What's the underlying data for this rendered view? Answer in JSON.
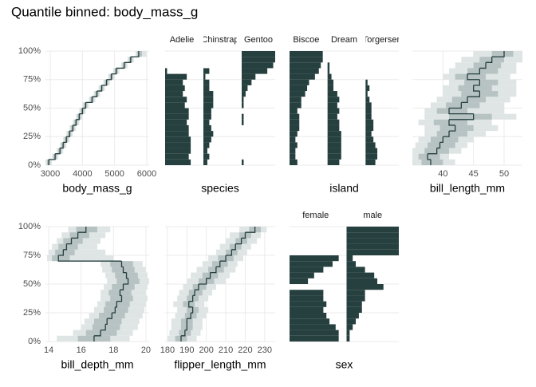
{
  "chart_data": {
    "title": "Quantile binned: body_mass_g",
    "ylim": [
      0,
      100
    ],
    "yticks": [
      {
        "value": 0,
        "label": "0%"
      },
      {
        "value": 25,
        "label": "25%"
      },
      {
        "value": 50,
        "label": "50%"
      },
      {
        "value": 75,
        "label": "75%"
      },
      {
        "value": 100,
        "label": "100%"
      }
    ],
    "bins": [
      0,
      5,
      10,
      15,
      20,
      25,
      30,
      35,
      40,
      45,
      50,
      55,
      60,
      65,
      70,
      75,
      80,
      85,
      90,
      95,
      100
    ],
    "color": "#263f3f",
    "grid": true,
    "panels": [
      {
        "type": "step",
        "x_label": "body_mass_g",
        "xlim": [
          2850,
          6075
        ],
        "xticks": [
          3000,
          4000,
          5000,
          6000
        ],
        "values": [
          2950,
          3150,
          3300,
          3400,
          3500,
          3600,
          3700,
          3800,
          3900,
          4000,
          4100,
          4300,
          4450,
          4600,
          4750,
          4900,
          5050,
          5300,
          5500,
          5750
        ],
        "band_low": [
          2850,
          3050,
          3200,
          3300,
          3400,
          3500,
          3600,
          3700,
          3800,
          3900,
          4000,
          4200,
          4350,
          4500,
          4650,
          4800,
          4950,
          5200,
          5400,
          5650
        ],
        "band_high": [
          3050,
          3250,
          3400,
          3500,
          3600,
          3700,
          3800,
          3900,
          4000,
          4100,
          4200,
          4400,
          4550,
          4700,
          4850,
          5000,
          5150,
          5400,
          5600,
          6000
        ],
        "inner_low": [
          2900,
          3100,
          3250,
          3350,
          3450,
          3550,
          3650,
          3750,
          3850,
          3950,
          4050,
          4250,
          4400,
          4550,
          4700,
          4850,
          5000,
          5250,
          5450,
          5700
        ],
        "inner_high": [
          3000,
          3200,
          3350,
          3450,
          3550,
          3650,
          3750,
          3850,
          3950,
          4050,
          4150,
          4350,
          4500,
          4650,
          4800,
          4950,
          5100,
          5350,
          5550,
          5850
        ]
      },
      {
        "type": "bar",
        "x_label": "species",
        "xlim": [
          0,
          17
        ],
        "facets": [
          {
            "name": "Adelie",
            "values": [
              13,
              12,
              13,
              13,
              13,
              12,
              12,
              11,
              12,
              12,
              10,
              11,
              9,
              10,
              9,
              11,
              1,
              0,
              0,
              0
            ]
          },
          {
            "name": "Chinstrap",
            "values": [
              2,
              3,
              2,
              3,
              4,
              5,
              4,
              3,
              4,
              4,
              5,
              5,
              5,
              3,
              3,
              1,
              3,
              0,
              0,
              0
            ]
          },
          {
            "name": "Gentoo",
            "values": [
              1,
              0,
              0,
              0,
              0,
              0,
              0,
              1,
              1,
              0,
              1,
              1,
              2,
              3,
              5,
              7,
              13,
              16,
              17,
              17
            ]
          }
        ]
      },
      {
        "type": "bar",
        "x_label": "island",
        "xlim": [
          0,
          17
        ],
        "facets": [
          {
            "name": "Biscoe",
            "values": [
              4,
              3,
              3,
              4,
              3,
              4,
              5,
              5,
              5,
              4,
              6,
              6,
              8,
              9,
              10,
              13,
              15,
              16,
              17,
              17
            ]
          },
          {
            "name": "Dream",
            "values": [
              6,
              7,
              7,
              7,
              7,
              7,
              6,
              6,
              5,
              6,
              5,
              6,
              5,
              3,
              3,
              2,
              1,
              1,
              0,
              0
            ]
          },
          {
            "name": "Torgersen",
            "values": [
              5,
              6,
              6,
              5,
              4,
              3,
              4,
              4,
              3,
              3,
              3,
              2,
              1,
              2,
              1,
              0,
              0,
              0,
              0,
              0
            ]
          }
        ]
      },
      {
        "type": "step",
        "x_label": "bill_length_mm",
        "xlim": [
          35,
          53
        ],
        "xticks": [
          40,
          45,
          50
        ],
        "values": [
          38,
          37.5,
          39,
          39.5,
          40,
          41,
          42,
          41,
          45,
          41,
          43,
          44,
          46,
          45,
          46,
          44,
          46,
          47,
          48,
          50
        ],
        "band_low": [
          35,
          35,
          35,
          35.5,
          36,
          37,
          37,
          36,
          37,
          37,
          38,
          39,
          40,
          40,
          41,
          40,
          41,
          42,
          43,
          45
        ],
        "band_high": [
          42,
          41,
          43,
          44,
          45,
          47,
          49,
          48,
          52,
          50,
          50,
          51,
          52,
          52,
          52,
          51,
          52,
          52,
          53,
          53
        ],
        "inner_low": [
          36.5,
          36,
          37,
          37.5,
          38,
          39,
          39.5,
          38.5,
          41,
          39,
          40.5,
          41.5,
          43,
          42.5,
          43.5,
          42,
          44,
          45,
          46,
          48
        ],
        "inner_high": [
          40,
          39.5,
          41,
          42,
          42.5,
          44,
          45,
          44,
          48,
          44,
          46,
          47,
          49,
          48,
          49,
          47,
          49,
          49.5,
          50,
          51.5
        ]
      },
      {
        "type": "step",
        "x_label": "bill_depth_mm",
        "xlim": [
          13.8,
          20.2
        ],
        "xticks": [
          14,
          16,
          18,
          20
        ],
        "values": [
          16.8,
          17.2,
          17.5,
          17.6,
          17.9,
          18.1,
          18.2,
          18.5,
          18.4,
          18.6,
          18.9,
          18.8,
          18.6,
          18.5,
          14.6,
          14.9,
          15.1,
          15.4,
          15.8,
          16.3
        ],
        "band_low": [
          14.5,
          15.5,
          16,
          16.2,
          16.5,
          16.8,
          17,
          17.2,
          17.2,
          17.4,
          17.6,
          17.5,
          17.3,
          17.2,
          13.9,
          14,
          14.2,
          14.5,
          14.8,
          15.2
        ],
        "band_high": [
          19,
          19.2,
          19.5,
          19.6,
          19.8,
          19.9,
          20,
          20.1,
          20,
          20.1,
          20.2,
          20.1,
          20,
          19.8,
          18,
          17.5,
          17,
          17.2,
          17.5,
          17.8
        ],
        "inner_low": [
          15.8,
          16.3,
          16.7,
          16.8,
          17.1,
          17.4,
          17.5,
          17.8,
          17.7,
          17.9,
          18.2,
          18.1,
          17.9,
          17.8,
          14.2,
          14.4,
          14.6,
          14.9,
          15.3,
          15.7
        ],
        "inner_high": [
          17.8,
          18.2,
          18.4,
          18.5,
          18.7,
          18.9,
          19,
          19.2,
          19.1,
          19.3,
          19.6,
          19.5,
          19.3,
          19.2,
          15.3,
          15.6,
          15.8,
          16.1,
          16.5,
          17
        ]
      },
      {
        "type": "step",
        "x_label": "flipper_length_mm",
        "xlim": [
          178.8,
          235.4
        ],
        "xticks": [
          180,
          190,
          200,
          210,
          220,
          230
        ],
        "values": [
          187,
          189,
          190,
          190,
          192,
          193,
          191,
          193,
          194,
          196,
          200,
          202,
          205,
          207,
          210,
          213,
          215,
          218,
          220,
          225
        ],
        "band_low": [
          180,
          181,
          182,
          182,
          184,
          185,
          183,
          185,
          186,
          188,
          190,
          192,
          195,
          198,
          201,
          205,
          207,
          210,
          212,
          217
        ],
        "band_high": [
          195,
          197,
          198,
          198,
          200,
          201,
          199,
          201,
          203,
          205,
          210,
          212,
          215,
          216,
          219,
          221,
          223,
          226,
          228,
          231
        ],
        "inner_low": [
          184,
          186,
          187,
          187,
          189,
          190,
          188,
          190,
          191,
          193,
          196,
          198,
          201,
          203,
          206,
          210,
          212,
          215,
          217,
          222
        ],
        "inner_high": [
          190,
          192,
          193,
          193,
          195,
          196,
          194,
          196,
          198,
          200,
          204,
          206,
          209,
          211,
          214,
          216,
          218,
          221,
          223,
          228
        ]
      },
      {
        "type": "bar",
        "x_label": "sex",
        "xlim": [
          0,
          17
        ],
        "facets": [
          {
            "name": "female",
            "values": [
              16,
              16,
              15,
              13,
              12,
              11,
              12,
              11,
              11,
              0,
              6,
              8,
              11,
              14,
              16,
              0,
              0,
              0,
              0,
              0
            ]
          },
          {
            "name": "male",
            "values": [
              1,
              1,
              2,
              3,
              4,
              5,
              5,
              6,
              6,
              12,
              10,
              9,
              6,
              3,
              2,
              17,
              17,
              17,
              17,
              17
            ]
          }
        ]
      }
    ]
  }
}
